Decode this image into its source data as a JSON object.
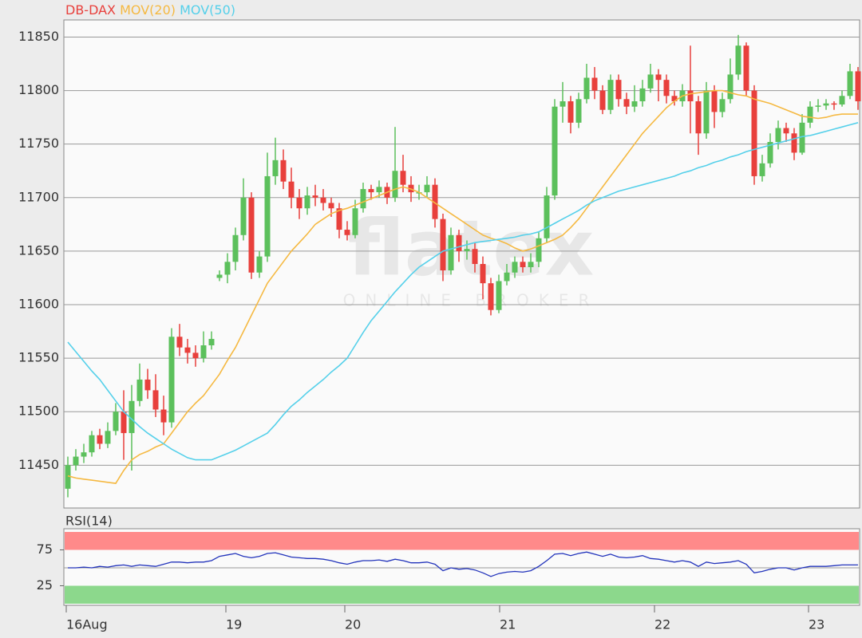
{
  "watermark": {
    "brand": "flatex",
    "tagline": "ONLINE BROKER"
  },
  "chart_data": [
    {
      "type": "candlestick",
      "name": "DB-DAX",
      "name_color": "#e8403c",
      "up_color": "#5cc05c",
      "down_color": "#e8403c",
      "candles": [
        [
          11428,
          11458,
          11420,
          11450
        ],
        [
          11450,
          11465,
          11445,
          11458
        ],
        [
          11458,
          11470,
          11452,
          11462
        ],
        [
          11462,
          11482,
          11458,
          11478
        ],
        [
          11478,
          11484,
          11465,
          11470
        ],
        [
          11470,
          11490,
          11466,
          11482
        ],
        [
          11482,
          11508,
          11478,
          11500
        ],
        [
          11500,
          11520,
          11455,
          11480
        ],
        [
          11480,
          11525,
          11445,
          11510
        ],
        [
          11510,
          11545,
          11505,
          11530
        ],
        [
          11530,
          11540,
          11512,
          11520
        ],
        [
          11520,
          11535,
          11495,
          11502
        ],
        [
          11502,
          11515,
          11478,
          11490
        ],
        [
          11490,
          11578,
          11485,
          11570
        ],
        [
          11570,
          11582,
          11552,
          11560
        ],
        [
          11560,
          11568,
          11545,
          11555
        ],
        [
          11555,
          11562,
          11542,
          11550
        ],
        [
          11550,
          11575,
          11546,
          11562
        ],
        [
          11562,
          11575,
          11558,
          11568
        ],
        [
          11625,
          11632,
          11622,
          11628
        ],
        [
          11628,
          11648,
          11620,
          11640
        ],
        [
          11640,
          11672,
          11632,
          11665
        ],
        [
          11665,
          11718,
          11660,
          11700
        ],
        [
          11700,
          11705,
          11624,
          11630
        ],
        [
          11630,
          11650,
          11625,
          11645
        ],
        [
          11645,
          11742,
          11640,
          11720
        ],
        [
          11720,
          11756,
          11712,
          11735
        ],
        [
          11735,
          11745,
          11708,
          11715
        ],
        [
          11715,
          11728,
          11690,
          11700
        ],
        [
          11700,
          11708,
          11680,
          11690
        ],
        [
          11690,
          11710,
          11684,
          11702
        ],
        [
          11702,
          11712,
          11692,
          11700
        ],
        [
          11700,
          11708,
          11688,
          11695
        ],
        [
          11695,
          11700,
          11682,
          11690
        ],
        [
          11690,
          11695,
          11662,
          11670
        ],
        [
          11670,
          11678,
          11660,
          11665
        ],
        [
          11665,
          11698,
          11662,
          11690
        ],
        [
          11690,
          11714,
          11686,
          11708
        ],
        [
          11708,
          11712,
          11698,
          11705
        ],
        [
          11705,
          11716,
          11700,
          11710
        ],
        [
          11710,
          11714,
          11694,
          11700
        ],
        [
          11700,
          11766,
          11696,
          11725
        ],
        [
          11725,
          11740,
          11705,
          11712
        ],
        [
          11712,
          11720,
          11696,
          11705
        ],
        [
          11705,
          11712,
          11698,
          11705
        ],
        [
          11705,
          11720,
          11700,
          11712
        ],
        [
          11712,
          11718,
          11672,
          11680
        ],
        [
          11680,
          11685,
          11622,
          11632
        ],
        [
          11632,
          11672,
          11628,
          11665
        ],
        [
          11665,
          11670,
          11640,
          11650
        ],
        [
          11650,
          11660,
          11642,
          11652
        ],
        [
          11652,
          11658,
          11630,
          11638
        ],
        [
          11638,
          11645,
          11605,
          11620
        ],
        [
          11620,
          11625,
          11590,
          11595
        ],
        [
          11595,
          11628,
          11592,
          11622
        ],
        [
          11622,
          11638,
          11618,
          11630
        ],
        [
          11630,
          11645,
          11625,
          11640
        ],
        [
          11640,
          11645,
          11630,
          11635
        ],
        [
          11635,
          11648,
          11630,
          11640
        ],
        [
          11640,
          11668,
          11635,
          11662
        ],
        [
          11662,
          11710,
          11658,
          11702
        ],
        [
          11702,
          11792,
          11698,
          11785
        ],
        [
          11785,
          11808,
          11770,
          11790
        ],
        [
          11790,
          11795,
          11760,
          11770
        ],
        [
          11770,
          11798,
          11765,
          11792
        ],
        [
          11792,
          11825,
          11788,
          11812
        ],
        [
          11812,
          11822,
          11792,
          11800
        ],
        [
          11800,
          11805,
          11778,
          11782
        ],
        [
          11782,
          11815,
          11778,
          11810
        ],
        [
          11810,
          11815,
          11785,
          11792
        ],
        [
          11792,
          11798,
          11778,
          11785
        ],
        [
          11785,
          11805,
          11780,
          11790
        ],
        [
          11790,
          11810,
          11785,
          11802
        ],
        [
          11802,
          11825,
          11798,
          11815
        ],
        [
          11815,
          11820,
          11790,
          11810
        ],
        [
          11810,
          11815,
          11788,
          11795
        ],
        [
          11795,
          11800,
          11786,
          11790
        ],
        [
          11790,
          11806,
          11785,
          11800
        ],
        [
          11800,
          11842,
          11760,
          11790
        ],
        [
          11790,
          11795,
          11740,
          11760
        ],
        [
          11760,
          11808,
          11755,
          11800
        ],
        [
          11800,
          11805,
          11765,
          11780
        ],
        [
          11780,
          11798,
          11775,
          11792
        ],
        [
          11792,
          11830,
          11788,
          11815
        ],
        [
          11815,
          11852,
          11810,
          11842
        ],
        [
          11842,
          11845,
          11795,
          11800
        ],
        [
          11800,
          11805,
          11712,
          11720
        ],
        [
          11720,
          11740,
          11715,
          11732
        ],
        [
          11732,
          11760,
          11728,
          11752
        ],
        [
          11752,
          11772,
          11745,
          11765
        ],
        [
          11765,
          11770,
          11752,
          11760
        ],
        [
          11760,
          11765,
          11735,
          11742
        ],
        [
          11742,
          11778,
          11740,
          11770
        ],
        [
          11770,
          11790,
          11765,
          11785
        ],
        [
          11785,
          11792,
          11780,
          11786
        ],
        [
          11786,
          11792,
          11782,
          11788
        ],
        [
          11788,
          11790,
          11782,
          11787
        ],
        [
          11787,
          11800,
          11785,
          11795
        ],
        [
          11795,
          11825,
          11792,
          11818
        ],
        [
          11818,
          11822,
          11782,
          11790
        ]
      ],
      "series": [
        {
          "name": "MOV(20)",
          "color": "#f5b942",
          "values": [
            11440,
            11438,
            11437,
            11436,
            11435,
            11434,
            11433,
            11445,
            11455,
            11460,
            11463,
            11467,
            11470,
            11480,
            11490,
            11500,
            11508,
            11515,
            11525,
            11535,
            11548,
            11560,
            11575,
            11590,
            11605,
            11620,
            11630,
            11640,
            11650,
            11658,
            11666,
            11675,
            11680,
            11685,
            11688,
            11690,
            11693,
            11696,
            11699,
            11702,
            11705,
            11708,
            11710,
            11708,
            11705,
            11700,
            11695,
            11690,
            11685,
            11680,
            11675,
            11670,
            11665,
            11662,
            11660,
            11657,
            11653,
            11650,
            11652,
            11655,
            11658,
            11661,
            11665,
            11672,
            11680,
            11690,
            11700,
            11710,
            11720,
            11730,
            11740,
            11750,
            11760,
            11768,
            11776,
            11784,
            11790,
            11795,
            11797,
            11798,
            11799,
            11800,
            11800,
            11798,
            11796,
            11795,
            11792,
            11790,
            11788,
            11785,
            11782,
            11779,
            11776,
            11775,
            11774,
            11775,
            11777,
            11778,
            11778,
            11778
          ]
        },
        {
          "name": "MOV(50)",
          "color": "#55d0ea",
          "values": [
            11565,
            11556,
            11547,
            11538,
            11530,
            11520,
            11510,
            11500,
            11493,
            11486,
            11480,
            11475,
            11470,
            11465,
            11461,
            11457,
            11455,
            11455,
            11455,
            11458,
            11461,
            11464,
            11468,
            11472,
            11476,
            11480,
            11488,
            11497,
            11505,
            11511,
            11518,
            11524,
            11530,
            11537,
            11543,
            11550,
            11562,
            11574,
            11585,
            11594,
            11603,
            11612,
            11620,
            11628,
            11635,
            11640,
            11645,
            11650,
            11652,
            11654,
            11656,
            11658,
            11659,
            11660,
            11661,
            11662,
            11663,
            11665,
            11666,
            11668,
            11672,
            11676,
            11680,
            11684,
            11688,
            11693,
            11697,
            11700,
            11703,
            11706,
            11708,
            11710,
            11712,
            11714,
            11716,
            11718,
            11720,
            11723,
            11725,
            11728,
            11730,
            11733,
            11735,
            11738,
            11740,
            11743,
            11745,
            11747,
            11749,
            11751,
            11753,
            11755,
            11757,
            11758,
            11760,
            11762,
            11764,
            11766,
            11768,
            11770
          ]
        }
      ],
      "ylim": [
        11410,
        11866
      ],
      "yticks": [
        11450,
        11500,
        11550,
        11600,
        11650,
        11700,
        11750,
        11800,
        11850
      ],
      "grid": true,
      "xlim": [
        -0.5,
        99.2
      ],
      "xticks": [
        {
          "value": -0.2,
          "label": "16Aug"
        },
        {
          "value": 19.8,
          "label": "19"
        },
        {
          "value": 34.7,
          "label": "20"
        },
        {
          "value": 54.1,
          "label": "21"
        },
        {
          "value": 73.5,
          "label": "22"
        },
        {
          "value": 92.8,
          "label": "23"
        }
      ]
    },
    {
      "type": "line",
      "title": "RSI(14)",
      "color": "#2233bb",
      "values": [
        50,
        50,
        51,
        50,
        52,
        51,
        53,
        54,
        52,
        54,
        53,
        52,
        55,
        58,
        58,
        57,
        58,
        58,
        60,
        66,
        68,
        70,
        66,
        64,
        66,
        70,
        71,
        68,
        65,
        64,
        63,
        63,
        62,
        60,
        57,
        55,
        58,
        60,
        60,
        61,
        59,
        62,
        60,
        57,
        57,
        58,
        55,
        46,
        50,
        48,
        49,
        47,
        43,
        38,
        42,
        44,
        45,
        44,
        46,
        52,
        60,
        69,
        70,
        67,
        70,
        72,
        69,
        66,
        69,
        65,
        64,
        65,
        67,
        63,
        62,
        60,
        58,
        60,
        58,
        52,
        58,
        56,
        57,
        58,
        60,
        55,
        43,
        45,
        48,
        50,
        50,
        47,
        50,
        52,
        52,
        52,
        53,
        54,
        54,
        54
      ],
      "ylim": [
        0,
        100
      ],
      "yticks": [
        25,
        75
      ],
      "xlim": [
        -0.5,
        99.2
      ],
      "midline": 50,
      "bands": [
        {
          "from": 75,
          "to": 100,
          "color": "#ff8a8a"
        },
        {
          "from": 0,
          "to": 25,
          "color": "#8cd88c"
        }
      ]
    }
  ]
}
